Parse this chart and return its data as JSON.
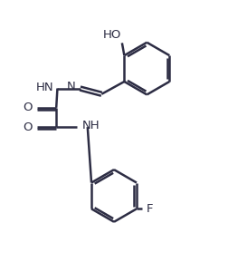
{
  "bg_color": "#ffffff",
  "line_color": "#2d2d44",
  "text_color": "#2d2d44",
  "line_width": 1.8,
  "font_size": 9.5,
  "figsize": [
    2.52,
    2.89
  ],
  "dpi": 100,
  "ho_label": "HO",
  "hn_label": "HN",
  "n_label": "N",
  "nh_label": "NH",
  "o1_label": "O",
  "o2_label": "O",
  "f_label": "F"
}
